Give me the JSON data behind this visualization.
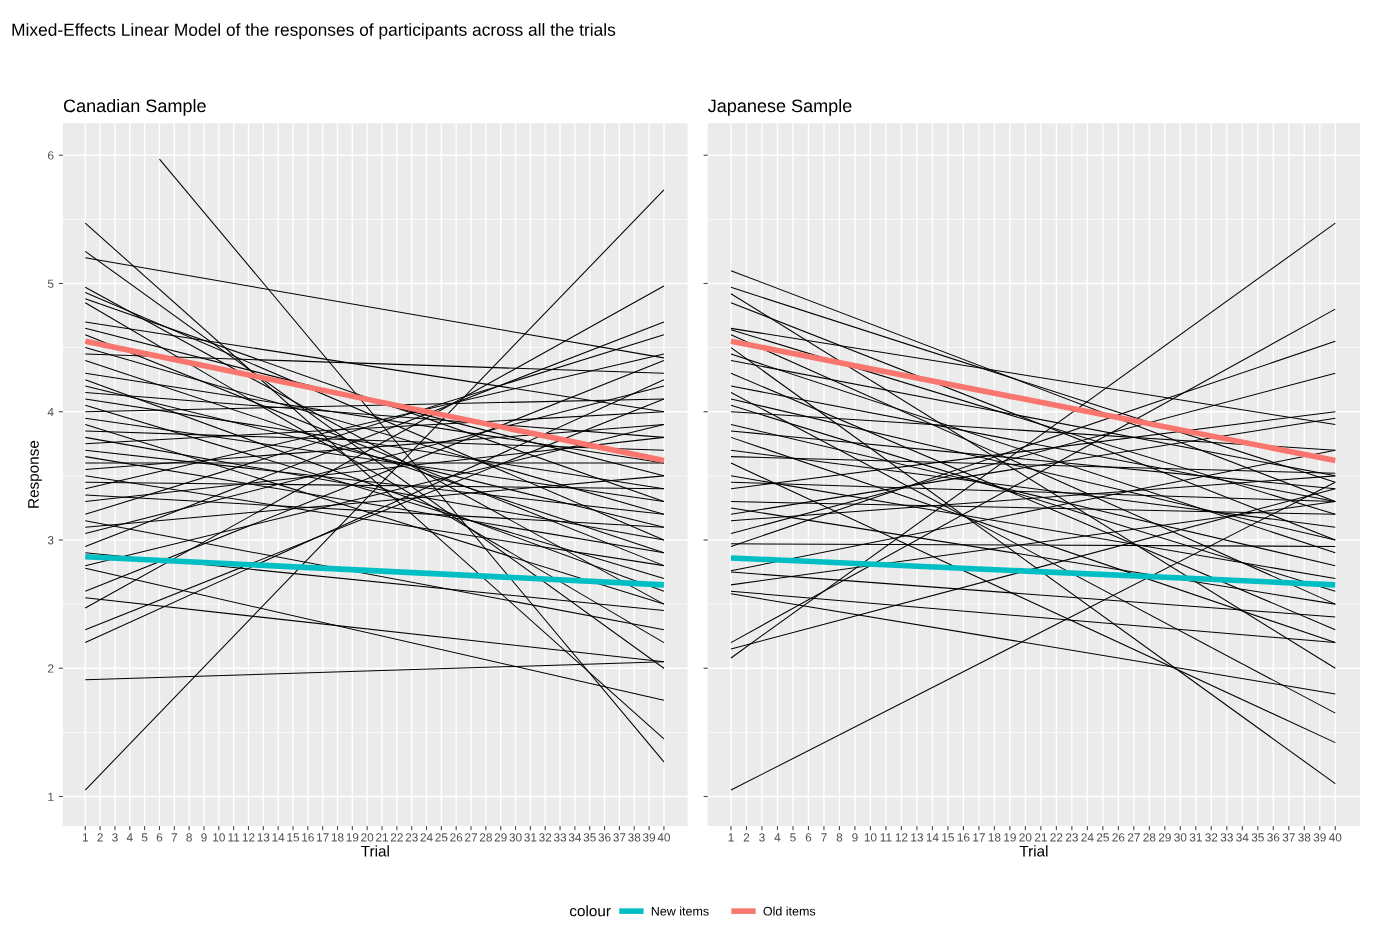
{
  "chart_data": [
    {
      "type": "line",
      "title": "Canadian Sample",
      "xlabel": "Trial",
      "ylabel": "Response",
      "legend_title": "colour",
      "legend": "bottom",
      "grid": true,
      "annotations": [
        "Mixed-Effects Linear Model of the responses of participants across all the trials"
      ],
      "xlim": [
        -0.5,
        41.6
      ],
      "xticks": [
        1,
        2,
        3,
        4,
        5,
        6,
        7,
        8,
        9,
        10,
        11,
        12,
        13,
        14,
        15,
        16,
        17,
        18,
        19,
        20,
        21,
        22,
        23,
        24,
        25,
        26,
        27,
        28,
        29,
        30,
        31,
        32,
        33,
        34,
        35,
        36,
        37,
        38,
        39,
        40
      ],
      "ylim": [
        0.77,
        6.25
      ],
      "yticks": [
        1,
        2,
        3,
        4,
        5,
        6
      ],
      "series": [
        {
          "x": [
            1,
            40
          ],
          "values": [
            5.47,
            1.45
          ],
          "color": "#000000"
        },
        {
          "x": [
            1,
            40
          ],
          "values": [
            5.25,
            2.0
          ],
          "color": "#000000"
        },
        {
          "x": [
            1,
            40
          ],
          "values": [
            5.2,
            4.42
          ],
          "color": "#000000"
        },
        {
          "x": [
            1,
            40
          ],
          "values": [
            4.97,
            2.5
          ],
          "color": "#000000"
        },
        {
          "x": [
            1,
            40
          ],
          "values": [
            4.93,
            3.0
          ],
          "color": "#000000"
        },
        {
          "x": [
            1,
            40
          ],
          "values": [
            4.88,
            3.3
          ],
          "color": "#000000"
        },
        {
          "x": [
            1,
            40
          ],
          "values": [
            4.85,
            2.2
          ],
          "color": "#000000"
        },
        {
          "x": [
            1,
            40
          ],
          "values": [
            4.7,
            4.0
          ],
          "color": "#000000"
        },
        {
          "x": [
            1,
            40
          ],
          "values": [
            4.65,
            3.5
          ],
          "color": "#000000"
        },
        {
          "x": [
            1,
            40
          ],
          "values": [
            4.6,
            2.8
          ],
          "color": "#000000"
        },
        {
          "x": [
            1,
            40
          ],
          "values": [
            4.5,
            3.2
          ],
          "color": "#000000"
        },
        {
          "x": [
            1,
            40
          ],
          "values": [
            4.45,
            4.3
          ],
          "color": "#000000"
        },
        {
          "x": [
            1,
            40
          ],
          "values": [
            4.4,
            2.9
          ],
          "color": "#000000"
        },
        {
          "x": [
            1,
            40
          ],
          "values": [
            4.3,
            3.6
          ],
          "color": "#000000"
        },
        {
          "x": [
            1,
            40
          ],
          "values": [
            4.25,
            2.6
          ],
          "color": "#000000"
        },
        {
          "x": [
            1,
            40
          ],
          "values": [
            4.2,
            3.1
          ],
          "color": "#000000"
        },
        {
          "x": [
            1,
            40
          ],
          "values": [
            4.15,
            3.8
          ],
          "color": "#000000"
        },
        {
          "x": [
            1,
            40
          ],
          "values": [
            4.1,
            3.4
          ],
          "color": "#000000"
        },
        {
          "x": [
            1,
            40
          ],
          "values": [
            4.05,
            2.7
          ],
          "color": "#000000"
        },
        {
          "x": [
            1,
            40
          ],
          "values": [
            4.0,
            4.1
          ],
          "color": "#000000"
        },
        {
          "x": [
            1,
            40
          ],
          "values": [
            3.95,
            3.3
          ],
          "color": "#000000"
        },
        {
          "x": [
            1,
            40
          ],
          "values": [
            3.9,
            2.5
          ],
          "color": "#000000"
        },
        {
          "x": [
            1,
            40
          ],
          "values": [
            3.85,
            3.7
          ],
          "color": "#000000"
        },
        {
          "x": [
            1,
            40
          ],
          "values": [
            3.8,
            3.0
          ],
          "color": "#000000"
        },
        {
          "x": [
            1,
            40
          ],
          "values": [
            3.75,
            4.0
          ],
          "color": "#000000"
        },
        {
          "x": [
            1,
            40
          ],
          "values": [
            3.7,
            3.2
          ],
          "color": "#000000"
        },
        {
          "x": [
            1,
            40
          ],
          "values": [
            3.65,
            2.9
          ],
          "color": "#000000"
        },
        {
          "x": [
            1,
            40
          ],
          "values": [
            3.6,
            3.6
          ],
          "color": "#000000"
        },
        {
          "x": [
            1,
            40
          ],
          "values": [
            3.55,
            3.9
          ],
          "color": "#000000"
        },
        {
          "x": [
            1,
            40
          ],
          "values": [
            3.5,
            2.8
          ],
          "color": "#000000"
        },
        {
          "x": [
            1,
            40
          ],
          "values": [
            3.45,
            3.4
          ],
          "color": "#000000"
        },
        {
          "x": [
            1,
            40
          ],
          "values": [
            3.4,
            4.45
          ],
          "color": "#000000"
        },
        {
          "x": [
            1,
            40
          ],
          "values": [
            3.35,
            3.1
          ],
          "color": "#000000"
        },
        {
          "x": [
            1,
            40
          ],
          "values": [
            3.3,
            3.8
          ],
          "color": "#000000"
        },
        {
          "x": [
            1,
            40
          ],
          "values": [
            3.2,
            4.6
          ],
          "color": "#000000"
        },
        {
          "x": [
            1,
            40
          ],
          "values": [
            3.15,
            2.3
          ],
          "color": "#000000"
        },
        {
          "x": [
            1,
            40
          ],
          "values": [
            3.1,
            3.5
          ],
          "color": "#000000"
        },
        {
          "x": [
            1,
            40
          ],
          "values": [
            3.05,
            4.2
          ],
          "color": "#000000"
        },
        {
          "x": [
            1,
            40
          ],
          "values": [
            2.95,
            4.7
          ],
          "color": "#000000"
        },
        {
          "x": [
            1,
            40
          ],
          "values": [
            2.9,
            2.45
          ],
          "color": "#000000"
        },
        {
          "x": [
            1,
            40
          ],
          "values": [
            2.8,
            3.9
          ],
          "color": "#000000"
        },
        {
          "x": [
            1,
            40
          ],
          "values": [
            2.78,
            1.75
          ],
          "color": "#000000"
        },
        {
          "x": [
            1,
            40
          ],
          "values": [
            2.6,
            4.4
          ],
          "color": "#000000"
        },
        {
          "x": [
            1,
            40
          ],
          "values": [
            2.55,
            2.05
          ],
          "color": "#000000"
        },
        {
          "x": [
            1,
            40
          ],
          "values": [
            2.47,
            4.98
          ],
          "color": "#000000"
        },
        {
          "x": [
            1,
            40
          ],
          "values": [
            2.3,
            4.1
          ],
          "color": "#000000"
        },
        {
          "x": [
            1,
            40
          ],
          "values": [
            2.2,
            4.25
          ],
          "color": "#000000"
        },
        {
          "x": [
            1,
            40
          ],
          "values": [
            1.91,
            2.05
          ],
          "color": "#000000"
        },
        {
          "x": [
            1,
            40
          ],
          "values": [
            1.05,
            5.73
          ],
          "color": "#000000"
        },
        {
          "x": [
            6,
            40
          ],
          "values": [
            5.97,
            1.27
          ],
          "color": "#000000"
        },
        {
          "name": "New items",
          "x": [
            1,
            40
          ],
          "values": [
            2.87,
            2.65
          ],
          "color": "#00bfc4"
        },
        {
          "name": "Old items",
          "x": [
            1,
            40
          ],
          "values": [
            4.55,
            3.62
          ],
          "color": "#f8766d"
        }
      ]
    },
    {
      "type": "line",
      "title": "Japanese Sample",
      "xlabel": "Trial",
      "grid": true,
      "tick_labels": "x",
      "xlim": [
        -0.5,
        41.6
      ],
      "xticks": [
        1,
        2,
        3,
        4,
        5,
        6,
        7,
        8,
        9,
        10,
        11,
        12,
        13,
        14,
        15,
        16,
        17,
        18,
        19,
        20,
        21,
        22,
        23,
        24,
        25,
        26,
        27,
        28,
        29,
        30,
        31,
        32,
        33,
        34,
        35,
        36,
        37,
        38,
        39,
        40
      ],
      "ylim": [
        0.77,
        6.25
      ],
      "yticks": [
        1,
        2,
        3,
        4,
        5,
        6
      ],
      "series": [
        {
          "x": [
            1,
            40
          ],
          "values": [
            5.1,
            3.3
          ],
          "color": "#000000"
        },
        {
          "x": [
            1,
            40
          ],
          "values": [
            4.97,
            3.45
          ],
          "color": "#000000"
        },
        {
          "x": [
            1,
            40
          ],
          "values": [
            4.92,
            2.0
          ],
          "color": "#000000"
        },
        {
          "x": [
            1,
            40
          ],
          "values": [
            4.85,
            3.0
          ],
          "color": "#000000"
        },
        {
          "x": [
            1,
            40
          ],
          "values": [
            4.65,
            3.9
          ],
          "color": "#000000"
        },
        {
          "x": [
            1,
            40
          ],
          "values": [
            4.6,
            2.5
          ],
          "color": "#000000"
        },
        {
          "x": [
            1,
            40
          ],
          "values": [
            4.64,
            3.2
          ],
          "color": "#000000"
        },
        {
          "x": [
            1,
            40
          ],
          "values": [
            4.5,
            1.1
          ],
          "color": "#000000"
        },
        {
          "x": [
            1,
            40
          ],
          "values": [
            4.45,
            2.9
          ],
          "color": "#000000"
        },
        {
          "x": [
            1,
            40
          ],
          "values": [
            4.4,
            3.5
          ],
          "color": "#000000"
        },
        {
          "x": [
            1,
            40
          ],
          "values": [
            4.3,
            2.3
          ],
          "color": "#000000"
        },
        {
          "x": [
            1,
            40
          ],
          "values": [
            4.2,
            3.3
          ],
          "color": "#000000"
        },
        {
          "x": [
            1,
            40
          ],
          "values": [
            4.15,
            1.65
          ],
          "color": "#000000"
        },
        {
          "x": [
            1,
            40
          ],
          "values": [
            4.1,
            3.0
          ],
          "color": "#000000"
        },
        {
          "x": [
            1,
            40
          ],
          "values": [
            4.05,
            2.6
          ],
          "color": "#000000"
        },
        {
          "x": [
            1,
            40
          ],
          "values": [
            4.0,
            3.7
          ],
          "color": "#000000"
        },
        {
          "x": [
            1,
            40
          ],
          "values": [
            3.9,
            2.8
          ],
          "color": "#000000"
        },
        {
          "x": [
            1,
            40
          ],
          "values": [
            3.85,
            3.4
          ],
          "color": "#000000"
        },
        {
          "x": [
            1,
            40
          ],
          "values": [
            3.8,
            2.2
          ],
          "color": "#000000"
        },
        {
          "x": [
            1,
            40
          ],
          "values": [
            3.7,
            3.1
          ],
          "color": "#000000"
        },
        {
          "x": [
            1,
            40
          ],
          "values": [
            3.65,
            3.52
          ],
          "color": "#000000"
        },
        {
          "x": [
            1,
            40
          ],
          "values": [
            3.6,
            1.42
          ],
          "color": "#000000"
        },
        {
          "x": [
            1,
            40
          ],
          "values": [
            3.5,
            2.7
          ],
          "color": "#000000"
        },
        {
          "x": [
            1,
            40
          ],
          "values": [
            3.45,
            3.3
          ],
          "color": "#000000"
        },
        {
          "x": [
            1,
            40
          ],
          "values": [
            3.4,
            4.0
          ],
          "color": "#000000"
        },
        {
          "x": [
            1,
            40
          ],
          "values": [
            3.3,
            3.2
          ],
          "color": "#000000"
        },
        {
          "x": [
            1,
            40
          ],
          "values": [
            3.25,
            2.5
          ],
          "color": "#000000"
        },
        {
          "x": [
            1,
            40
          ],
          "values": [
            3.2,
            3.95
          ],
          "color": "#000000"
        },
        {
          "x": [
            1,
            40
          ],
          "values": [
            3.15,
            3.5
          ],
          "color": "#000000"
        },
        {
          "x": [
            1,
            40
          ],
          "values": [
            3.05,
            4.3
          ],
          "color": "#000000"
        },
        {
          "x": [
            1,
            40
          ],
          "values": [
            2.97,
            2.95
          ],
          "color": "#000000"
        },
        {
          "x": [
            1,
            40
          ],
          "values": [
            2.95,
            4.55
          ],
          "color": "#000000"
        },
        {
          "x": [
            1,
            40
          ],
          "values": [
            2.76,
            3.7
          ],
          "color": "#000000"
        },
        {
          "x": [
            1,
            40
          ],
          "values": [
            2.75,
            2.4
          ],
          "color": "#000000"
        },
        {
          "x": [
            1,
            40
          ],
          "values": [
            2.65,
            3.3
          ],
          "color": "#000000"
        },
        {
          "x": [
            1,
            40
          ],
          "values": [
            2.6,
            2.2
          ],
          "color": "#000000"
        },
        {
          "x": [
            1,
            40
          ],
          "values": [
            2.58,
            1.8
          ],
          "color": "#000000"
        },
        {
          "x": [
            1,
            40
          ],
          "values": [
            2.2,
            4.8
          ],
          "color": "#000000"
        },
        {
          "x": [
            1,
            40
          ],
          "values": [
            2.15,
            3.4
          ],
          "color": "#000000"
        },
        {
          "x": [
            1,
            40
          ],
          "values": [
            2.08,
            5.47
          ],
          "color": "#000000"
        },
        {
          "x": [
            1,
            40
          ],
          "values": [
            1.05,
            3.45
          ],
          "color": "#000000"
        },
        {
          "name": "New items",
          "x": [
            1,
            40
          ],
          "values": [
            2.86,
            2.65
          ],
          "color": "#00bfc4"
        },
        {
          "name": "Old items",
          "x": [
            1,
            40
          ],
          "values": [
            4.55,
            3.62
          ],
          "color": "#f8766d"
        }
      ]
    }
  ]
}
